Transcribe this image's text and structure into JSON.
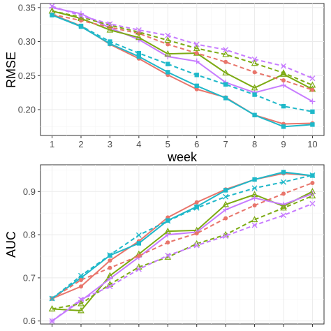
{
  "colors": {
    "red": "#e8756b",
    "green": "#7caa12",
    "cyan": "#1fb8c9",
    "purple": "#c77cff"
  },
  "chart_data": [
    {
      "type": "line",
      "xlabel": "week",
      "ylabel": "RMSE",
      "xlim": [
        0.6,
        10.4
      ],
      "ylim": [
        0.162,
        0.356
      ],
      "xticks": [
        1,
        2,
        3,
        4,
        5,
        6,
        7,
        8,
        9,
        10
      ],
      "yticks": [
        0.2,
        0.25,
        0.3,
        0.35
      ],
      "ytick_labels": [
        "0.20",
        "0.25",
        "0.30",
        "0.35"
      ],
      "x": [
        1,
        2,
        3,
        4,
        5,
        6,
        7,
        8,
        9,
        10
      ],
      "grid": true,
      "series": [
        {
          "color": "red",
          "dash": false,
          "marker": "circle",
          "values": [
            0.34,
            0.323,
            0.296,
            0.275,
            0.251,
            0.23,
            0.218,
            0.192,
            0.179,
            0.18
          ]
        },
        {
          "color": "cyan",
          "dash": false,
          "marker": "square",
          "values": [
            0.339,
            0.322,
            0.297,
            0.278,
            0.255,
            0.235,
            0.217,
            0.192,
            0.175,
            0.178
          ]
        },
        {
          "color": "purple",
          "dash": false,
          "marker": "plus",
          "values": [
            0.35,
            0.341,
            0.32,
            0.303,
            0.278,
            0.271,
            0.24,
            0.225,
            0.236,
            0.212
          ]
        },
        {
          "color": "green",
          "dash": false,
          "marker": "triangle",
          "values": [
            0.345,
            0.334,
            0.317,
            0.306,
            0.282,
            0.283,
            0.254,
            0.232,
            0.252,
            0.23
          ]
        },
        {
          "color": "red",
          "dash": true,
          "marker": "circle",
          "values": [
            0.34,
            0.331,
            0.321,
            0.312,
            0.296,
            0.283,
            0.27,
            0.255,
            0.243,
            0.229
          ]
        },
        {
          "color": "green",
          "dash": true,
          "marker": "triangle",
          "values": [
            0.345,
            0.336,
            0.324,
            0.314,
            0.302,
            0.29,
            0.281,
            0.268,
            0.254,
            0.236
          ]
        },
        {
          "color": "purple",
          "dash": true,
          "marker": "x",
          "values": [
            0.352,
            0.338,
            0.326,
            0.317,
            0.309,
            0.296,
            0.288,
            0.274,
            0.264,
            0.246
          ]
        },
        {
          "color": "cyan",
          "dash": true,
          "marker": "square",
          "values": [
            0.339,
            0.323,
            0.3,
            0.283,
            0.267,
            0.251,
            0.237,
            0.222,
            0.205,
            0.197
          ]
        }
      ]
    },
    {
      "type": "line",
      "xlabel": "",
      "ylabel": "AUC",
      "xlim": [
        0.6,
        10.4
      ],
      "ylim": [
        0.593,
        0.962
      ],
      "xticks": [
        1,
        2,
        3,
        4,
        5,
        6,
        7,
        8,
        9,
        10
      ],
      "yticks": [
        0.6,
        0.7,
        0.8,
        0.9
      ],
      "ytick_labels": [
        "0.6",
        "0.7",
        "0.8",
        "0.9"
      ],
      "x": [
        1,
        2,
        3,
        4,
        5,
        6,
        7,
        8,
        9,
        10
      ],
      "grid": true,
      "series": [
        {
          "color": "red",
          "dash": false,
          "marker": "circle",
          "values": [
            0.652,
            0.68,
            0.74,
            0.785,
            0.84,
            0.875,
            0.905,
            0.928,
            0.942,
            0.937
          ]
        },
        {
          "color": "cyan",
          "dash": false,
          "marker": "square",
          "values": [
            0.652,
            0.7,
            0.752,
            0.78,
            0.833,
            0.865,
            0.903,
            0.928,
            0.945,
            0.937
          ]
        },
        {
          "color": "green",
          "dash": false,
          "marker": "triangle",
          "values": [
            0.628,
            0.624,
            0.705,
            0.755,
            0.808,
            0.81,
            0.87,
            0.893,
            0.866,
            0.9
          ]
        },
        {
          "color": "purple",
          "dash": false,
          "marker": "plus",
          "values": [
            0.6,
            0.647,
            0.698,
            0.748,
            0.8,
            0.806,
            0.858,
            0.885,
            0.87,
            0.895
          ]
        },
        {
          "color": "red",
          "dash": true,
          "marker": "circle",
          "values": [
            0.652,
            0.695,
            0.723,
            0.751,
            0.782,
            0.803,
            0.838,
            0.868,
            0.895,
            0.92
          ]
        },
        {
          "color": "cyan",
          "dash": true,
          "marker": "x",
          "values": [
            0.652,
            0.705,
            0.753,
            0.799,
            0.832,
            0.862,
            0.888,
            0.908,
            0.922,
            0.938
          ]
        },
        {
          "color": "green",
          "dash": true,
          "marker": "triangle",
          "values": [
            0.628,
            0.64,
            0.685,
            0.725,
            0.748,
            0.779,
            0.8,
            0.835,
            0.862,
            0.89
          ]
        },
        {
          "color": "purple",
          "dash": true,
          "marker": "x",
          "values": [
            0.6,
            0.65,
            0.68,
            0.72,
            0.752,
            0.775,
            0.797,
            0.822,
            0.845,
            0.872
          ]
        }
      ]
    }
  ]
}
